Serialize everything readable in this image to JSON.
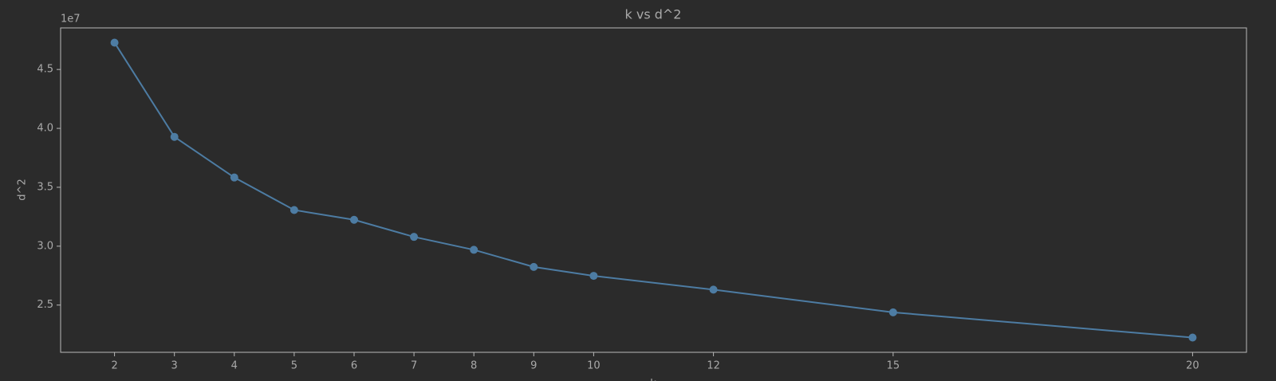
{
  "chart_data": {
    "type": "line",
    "title": "k vs d^2",
    "xlabel": "k",
    "ylabel": "d^2",
    "y_offset_label": "1e7",
    "x": [
      2,
      3,
      4,
      5,
      6,
      7,
      8,
      9,
      10,
      12,
      15,
      20
    ],
    "series": [
      {
        "color": "#4d7ca3",
        "values": [
          4.728,
          3.928,
          3.583,
          3.307,
          3.224,
          3.079,
          2.969,
          2.824,
          2.748,
          2.631,
          2.438,
          2.224
        ]
      }
    ],
    "xlim": [
      1.1,
      20.9
    ],
    "xticks": [
      2,
      3,
      4,
      5,
      6,
      7,
      8,
      9,
      10,
      12,
      15,
      20
    ],
    "ylim": [
      2.099,
      4.853
    ],
    "yticks": [
      2.5,
      {
        "value": 3,
        "label": "3.0"
      },
      3.5,
      {
        "value": 4,
        "label": "4.0"
      },
      4.5
    ],
    "grid": false,
    "markers": true
  }
}
